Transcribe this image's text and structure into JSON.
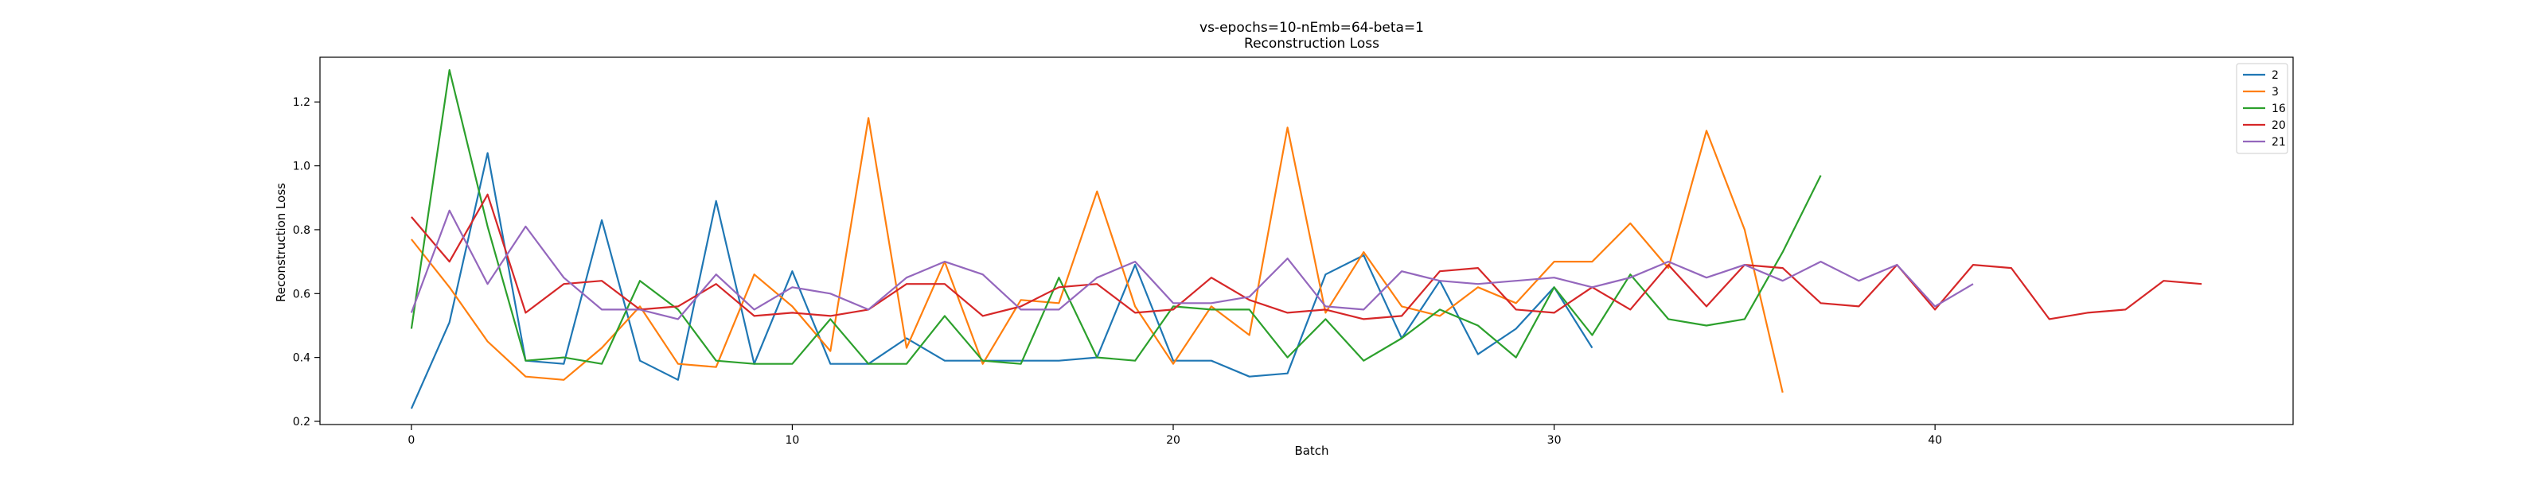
{
  "chart_data": {
    "type": "line",
    "title": "vs-epochs=10-nEmb=64-beta=1",
    "subtitle": "Reconstruction Loss",
    "xlabel": "Batch",
    "ylabel": "Reconstruction Loss",
    "xlim": [
      -2.4,
      49.4
    ],
    "ylim": [
      0.19,
      1.34
    ],
    "xticks": [
      0,
      10,
      20,
      30,
      40
    ],
    "yticks": [
      0.2,
      0.4,
      0.6,
      0.8,
      1.0,
      1.2
    ],
    "xtick_labels": [
      "0",
      "10",
      "20",
      "30",
      "40"
    ],
    "ytick_labels": [
      "0.2",
      "0.4",
      "0.6",
      "0.8",
      "1.0",
      "1.2"
    ],
    "grid": false,
    "legend_position": "top-right",
    "series": [
      {
        "name": "2",
        "color": "#1f77b4",
        "x": [
          0,
          1,
          2,
          3,
          4,
          5,
          6,
          7,
          8,
          9,
          10,
          11,
          12,
          13,
          14,
          15,
          16,
          17,
          18,
          19,
          20,
          21,
          22,
          23,
          24,
          25,
          26,
          27,
          28,
          29,
          30,
          31
        ],
        "values": [
          0.24,
          0.51,
          1.04,
          0.39,
          0.38,
          0.83,
          0.39,
          0.33,
          0.89,
          0.38,
          0.67,
          0.38,
          0.38,
          0.46,
          0.39,
          0.39,
          0.39,
          0.39,
          0.4,
          0.69,
          0.39,
          0.39,
          0.34,
          0.35,
          0.66,
          0.72,
          0.46,
          0.64,
          0.41,
          0.49,
          0.62,
          0.43
        ]
      },
      {
        "name": "3",
        "color": "#ff7f0e",
        "x": [
          0,
          1,
          2,
          3,
          4,
          5,
          6,
          7,
          8,
          9,
          10,
          11,
          12,
          13,
          14,
          15,
          16,
          17,
          18,
          19,
          20,
          21,
          22,
          23,
          24,
          25,
          26,
          27,
          28,
          29,
          30,
          31,
          32,
          33,
          34,
          35,
          36
        ],
        "values": [
          0.77,
          0.62,
          0.45,
          0.34,
          0.33,
          0.43,
          0.56,
          0.38,
          0.37,
          0.66,
          0.56,
          0.42,
          1.15,
          0.43,
          0.7,
          0.38,
          0.58,
          0.57,
          0.92,
          0.56,
          0.38,
          0.56,
          0.47,
          1.12,
          0.54,
          0.73,
          0.56,
          0.53,
          0.62,
          0.57,
          0.7,
          0.7,
          0.82,
          0.68,
          1.11,
          0.8,
          0.29
        ]
      },
      {
        "name": "16",
        "color": "#2ca02c",
        "x": [
          0,
          1,
          2,
          3,
          4,
          5,
          6,
          7,
          8,
          9,
          10,
          11,
          12,
          13,
          14,
          15,
          16,
          17,
          18,
          19,
          20,
          21,
          22,
          23,
          24,
          25,
          26,
          27,
          28,
          29,
          30,
          31,
          32,
          33,
          34,
          35,
          36,
          37
        ],
        "values": [
          0.49,
          1.3,
          0.81,
          0.39,
          0.4,
          0.38,
          0.64,
          0.55,
          0.39,
          0.38,
          0.38,
          0.52,
          0.38,
          0.38,
          0.53,
          0.39,
          0.38,
          0.65,
          0.4,
          0.39,
          0.56,
          0.55,
          0.55,
          0.4,
          0.52,
          0.39,
          0.46,
          0.55,
          0.5,
          0.4,
          0.62,
          0.47,
          0.66,
          0.52,
          0.5,
          0.52,
          0.73,
          0.97
        ]
      },
      {
        "name": "20",
        "color": "#d62728",
        "x": [
          0,
          1,
          2,
          3,
          4,
          5,
          6,
          7,
          8,
          9,
          10,
          11,
          12,
          13,
          14,
          15,
          16,
          17,
          18,
          19,
          20,
          21,
          22,
          23,
          24,
          25,
          26,
          27,
          28,
          29,
          30,
          31,
          32,
          33,
          34,
          35,
          36,
          37,
          38,
          39,
          40,
          41,
          42,
          43,
          44,
          45,
          46,
          47
        ],
        "values": [
          0.84,
          0.7,
          0.91,
          0.54,
          0.63,
          0.64,
          0.55,
          0.56,
          0.63,
          0.53,
          0.54,
          0.53,
          0.55,
          0.63,
          0.63,
          0.53,
          0.56,
          0.62,
          0.63,
          0.54,
          0.55,
          0.65,
          0.58,
          0.54,
          0.55,
          0.52,
          0.53,
          0.67,
          0.68,
          0.55,
          0.54,
          0.62,
          0.55,
          0.69,
          0.56,
          0.69,
          0.68,
          0.57,
          0.56,
          0.69,
          0.55,
          0.69,
          0.68,
          0.52,
          0.54,
          0.55,
          0.64,
          0.63
        ]
      },
      {
        "name": "21",
        "color": "#9467bd",
        "x": [
          0,
          1,
          2,
          3,
          4,
          5,
          6,
          7,
          8,
          9,
          10,
          11,
          12,
          13,
          14,
          15,
          16,
          17,
          18,
          19,
          20,
          21,
          22,
          23,
          24,
          25,
          26,
          27,
          28,
          29,
          30,
          31,
          32,
          33,
          34,
          35,
          36,
          37,
          38,
          39,
          40,
          41
        ],
        "values": [
          0.54,
          0.86,
          0.63,
          0.81,
          0.65,
          0.55,
          0.55,
          0.52,
          0.66,
          0.55,
          0.62,
          0.6,
          0.55,
          0.65,
          0.7,
          0.66,
          0.55,
          0.55,
          0.65,
          0.7,
          0.57,
          0.57,
          0.59,
          0.71,
          0.56,
          0.55,
          0.67,
          0.64,
          0.63,
          0.64,
          0.65,
          0.62,
          0.65,
          0.7,
          0.65,
          0.69,
          0.64,
          0.7,
          0.64,
          0.69,
          0.56,
          0.63
        ]
      }
    ]
  }
}
